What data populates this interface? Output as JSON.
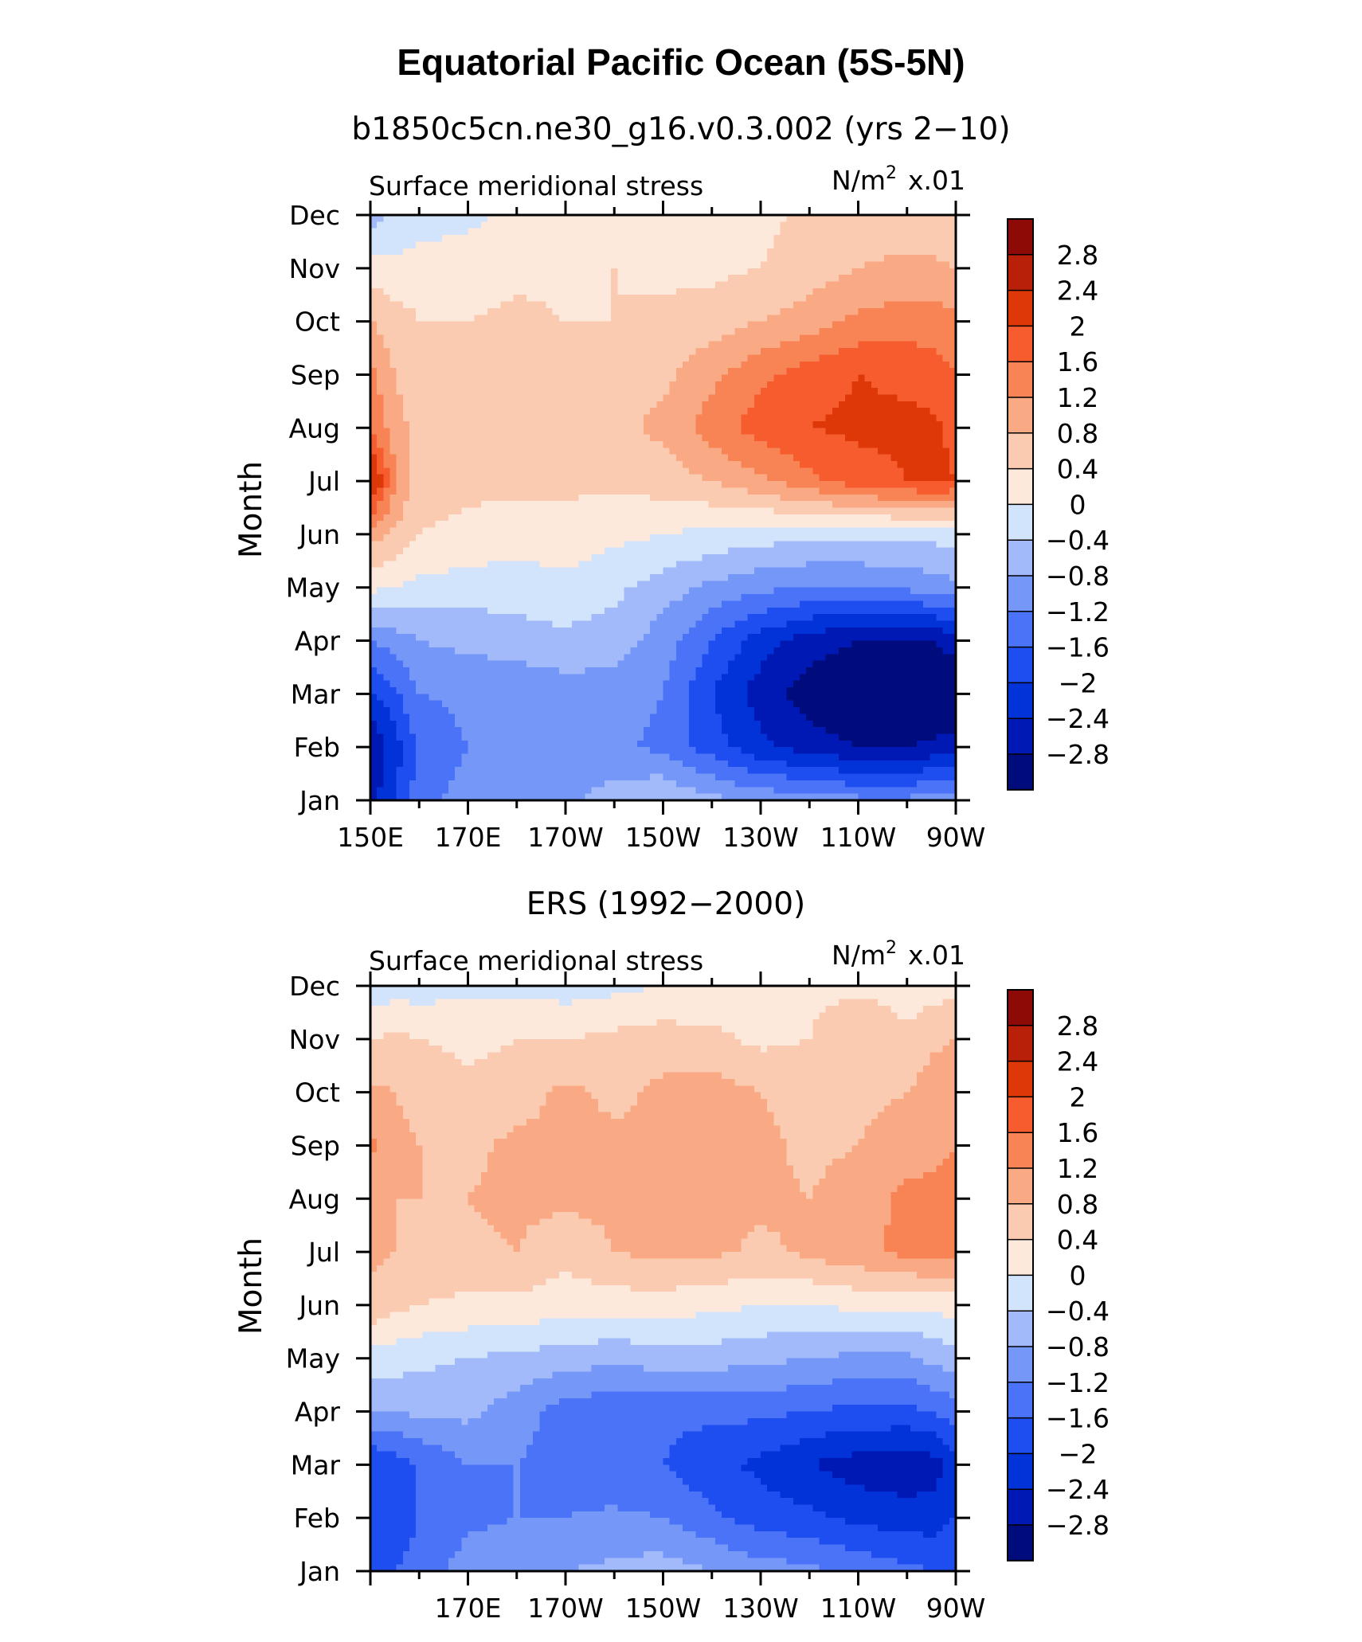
{
  "figure": {
    "title": "Equatorial Pacific Ocean (5S-5N)"
  },
  "colors": {
    "levels": [
      -3.2,
      -2.8,
      -2.4,
      -2.0,
      -1.6,
      -1.2,
      -0.8,
      -0.4,
      0,
      0.4,
      0.8,
      1.2,
      1.6,
      2.0,
      2.4,
      2.8,
      3.2
    ],
    "palette": [
      "#000c7c",
      "#0019b5",
      "#0233d9",
      "#1f4ef0",
      "#4a73f7",
      "#7497f8",
      "#a2baf9",
      "#d2e4fb",
      "#fde8dc",
      "#fbcbb1",
      "#f9a983",
      "#f88456",
      "#f65c2e",
      "#df3808",
      "#b8200a",
      "#8d0a07"
    ]
  },
  "colorbar": {
    "labels": [
      "2.8",
      "2.4",
      "2",
      "1.6",
      "1.2",
      "0.8",
      "0.4",
      "0",
      "−0.4",
      "−0.8",
      "−1.2",
      "−1.6",
      "−2",
      "−2.4",
      "−2.8"
    ]
  },
  "chart_data": [
    {
      "type": "heatmap",
      "subtitle": "b1850c5cn.ne30_g16.v0.3.002 (yrs 2−10)",
      "left_label": "Surface meridional stress",
      "units_main": "N/m",
      "units_sup": "2",
      "units_scale": "x.01",
      "ylabel": "Month",
      "yticks": [
        "Jan",
        "Feb",
        "Mar",
        "Apr",
        "May",
        "Jun",
        "Jul",
        "Aug",
        "Sep",
        "Oct",
        "Nov",
        "Dec"
      ],
      "xticks": [
        "150E",
        "170E",
        "170W",
        "150W",
        "130W",
        "110W",
        "90W"
      ],
      "xlim": [
        150,
        270
      ],
      "x": [
        150,
        155,
        160,
        170,
        180,
        190,
        200,
        210,
        220,
        230,
        240,
        250,
        260,
        265,
        270
      ],
      "z": [
        [
          -2.6,
          -2.0,
          -1.4,
          -1.0,
          -0.9,
          -0.9,
          -0.6,
          -0.4,
          -0.7,
          -0.9,
          -1.0,
          -1.1,
          -1.1,
          -1.0,
          -1.0
        ],
        [
          -2.8,
          -2.2,
          -1.5,
          -1.2,
          -1.2,
          -1.1,
          -1.1,
          -1.3,
          -1.8,
          -2.3,
          -2.6,
          -2.8,
          -2.8,
          -2.7,
          -2.6
        ],
        [
          -2.1,
          -1.7,
          -1.2,
          -1.1,
          -1.1,
          -1.0,
          -1.0,
          -1.2,
          -2.0,
          -2.6,
          -3.0,
          -3.3,
          -3.4,
          -3.4,
          -3.2
        ],
        [
          -1.2,
          -1.0,
          -0.8,
          -0.7,
          -0.6,
          -0.5,
          -0.6,
          -1.0,
          -1.6,
          -2.2,
          -2.6,
          -2.8,
          -2.9,
          -2.8,
          -2.6
        ],
        [
          0.1,
          0.0,
          -0.1,
          -0.2,
          -0.2,
          -0.1,
          -0.3,
          -0.6,
          -0.9,
          -1.1,
          -1.2,
          -1.2,
          -1.1,
          -1.0,
          -0.9
        ],
        [
          1.0,
          0.7,
          0.4,
          0.3,
          0.2,
          0.2,
          0.1,
          0.0,
          -0.1,
          -0.2,
          -0.3,
          -0.3,
          -0.3,
          -0.3,
          -0.2
        ],
        [
          2.6,
          1.3,
          0.6,
          0.5,
          0.5,
          0.5,
          0.5,
          0.6,
          0.8,
          1.1,
          1.5,
          1.8,
          2.0,
          2.1,
          2.0
        ],
        [
          1.6,
          1.0,
          0.6,
          0.5,
          0.5,
          0.6,
          0.7,
          0.9,
          1.4,
          1.8,
          2.0,
          2.1,
          2.1,
          2.1,
          1.9
        ],
        [
          1.3,
          0.8,
          0.5,
          0.5,
          0.6,
          0.6,
          0.6,
          0.7,
          1.1,
          1.5,
          1.8,
          2.0,
          1.9,
          1.8,
          1.6
        ],
        [
          0.8,
          0.6,
          0.4,
          0.4,
          0.5,
          0.4,
          0.4,
          0.5,
          0.6,
          0.8,
          1.0,
          1.3,
          1.4,
          1.4,
          1.3
        ],
        [
          0.2,
          0.1,
          0.2,
          0.2,
          0.3,
          0.3,
          0.4,
          0.3,
          0.3,
          0.4,
          0.6,
          0.8,
          0.9,
          0.9,
          0.8
        ],
        [
          -0.6,
          -0.3,
          -0.2,
          -0.1,
          0.1,
          0.2,
          0.2,
          0.2,
          0.2,
          0.3,
          0.5,
          0.6,
          0.5,
          0.5,
          0.5
        ]
      ]
    },
    {
      "type": "heatmap",
      "subtitle": "ERS (1992−2000)",
      "left_label": "Surface meridional stress",
      "units_main": "N/m",
      "units_sup": "2",
      "units_scale": "x.01",
      "ylabel": "Month",
      "yticks": [
        "Jan",
        "Feb",
        "Mar",
        "Apr",
        "May",
        "Jun",
        "Jul",
        "Aug",
        "Sep",
        "Oct",
        "Nov",
        "Dec"
      ],
      "xticks": [
        "170E",
        "170W",
        "150W",
        "130W",
        "110W",
        "90W"
      ],
      "xlim": [
        150,
        270
      ],
      "x": [
        150,
        155,
        160,
        170,
        180,
        190,
        200,
        210,
        220,
        230,
        240,
        250,
        260,
        265,
        270
      ],
      "z": [
        [
          -1.8,
          -1.6,
          -1.4,
          -1.0,
          -0.9,
          -0.8,
          -0.7,
          -0.6,
          -0.8,
          -1.0,
          -1.1,
          -1.3,
          -1.5,
          -1.6,
          -1.6
        ],
        [
          -2.0,
          -1.9,
          -1.6,
          -1.3,
          -1.2,
          -1.2,
          -1.1,
          -1.2,
          -1.5,
          -1.8,
          -1.9,
          -2.1,
          -2.2,
          -2.2,
          -2.0
        ],
        [
          -2.0,
          -1.8,
          -1.6,
          -1.2,
          -1.2,
          -1.4,
          -1.6,
          -1.6,
          -1.9,
          -2.1,
          -2.4,
          -2.6,
          -2.7,
          -2.6,
          -2.2
        ],
        [
          -0.8,
          -0.8,
          -0.7,
          -0.7,
          -1.0,
          -1.4,
          -1.5,
          -1.5,
          -1.5,
          -1.5,
          -1.6,
          -1.7,
          -1.7,
          -1.6,
          -1.4
        ],
        [
          -0.2,
          -0.2,
          -0.3,
          -0.4,
          -0.5,
          -0.6,
          -0.7,
          -0.6,
          -0.6,
          -0.7,
          -0.8,
          -0.9,
          -0.9,
          -0.7,
          -0.6
        ],
        [
          0.7,
          0.5,
          0.4,
          0.3,
          0.3,
          0.2,
          0.2,
          0.2,
          0.1,
          0.0,
          0.0,
          0.1,
          0.1,
          0.1,
          0.2
        ],
        [
          0.9,
          0.8,
          0.7,
          0.7,
          0.8,
          0.5,
          0.8,
          0.9,
          0.9,
          0.7,
          0.9,
          1.1,
          1.3,
          1.4,
          1.3
        ],
        [
          0.9,
          0.8,
          0.8,
          0.8,
          0.9,
          0.9,
          0.9,
          0.9,
          0.9,
          0.9,
          0.8,
          1.0,
          1.3,
          1.3,
          1.3
        ],
        [
          1.3,
          0.9,
          0.8,
          0.7,
          0.9,
          0.9,
          0.9,
          0.8,
          0.9,
          0.9,
          0.7,
          0.8,
          1.0,
          1.1,
          1.2
        ],
        [
          0.9,
          0.8,
          0.7,
          0.5,
          0.6,
          0.9,
          0.7,
          0.9,
          1.0,
          0.8,
          0.6,
          0.7,
          0.8,
          1.0,
          1.1
        ],
        [
          0.4,
          0.5,
          0.4,
          0.3,
          0.4,
          0.4,
          0.5,
          0.6,
          0.5,
          0.3,
          0.4,
          0.8,
          0.5,
          0.7,
          0.8
        ],
        [
          -0.3,
          -0.2,
          -0.2,
          -0.1,
          -0.1,
          -0.2,
          -0.1,
          0.0,
          0.1,
          0.2,
          0.3,
          0.3,
          0.2,
          0.2,
          0.3
        ]
      ]
    }
  ]
}
